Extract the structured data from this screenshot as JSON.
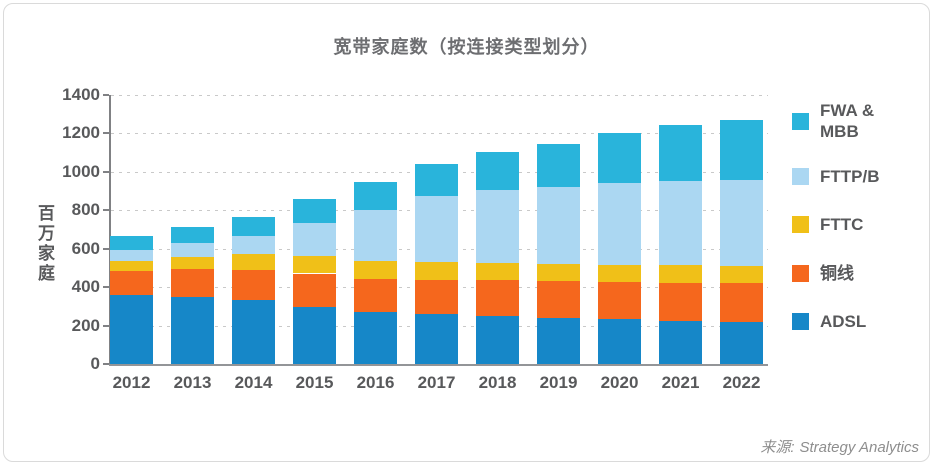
{
  "title": "宽带家庭数（按连接类型划分）",
  "source": {
    "label": "来源:",
    "value": "Strategy Analytics"
  },
  "chart_data": {
    "type": "bar",
    "stacked": true,
    "title": "宽带家庭数（按连接类型划分）",
    "xlabel": "",
    "ylabel": "百万家庭",
    "ylim": [
      0,
      1400
    ],
    "ytick_interval": 200,
    "grid": "horizontal-dashed",
    "legend_position": "right",
    "categories": [
      "2012",
      "2013",
      "2014",
      "2015",
      "2016",
      "2017",
      "2018",
      "2019",
      "2020",
      "2021",
      "2022"
    ],
    "series": [
      {
        "id": "adsl",
        "name": "ADSL",
        "legend_lines": [
          "ADSL"
        ],
        "color": "#1687C8",
        "values": [
          360,
          350,
          335,
          295,
          270,
          258,
          250,
          240,
          232,
          224,
          217
        ]
      },
      {
        "id": "copper-line",
        "name": "铜线",
        "legend_lines": [
          "铜线"
        ],
        "color": "#F5671D",
        "values": [
          122,
          146,
          155,
          176,
          174,
          178,
          185,
          192,
          196,
          198,
          202
        ]
      },
      {
        "id": "fttc",
        "name": "FTTC",
        "legend_lines": [
          "FTTC"
        ],
        "color": "#F0C018",
        "values": [
          56,
          59,
          80,
          89,
          92,
          96,
          91,
          88,
          88,
          91,
          89
        ]
      },
      {
        "id": "fttp-b",
        "name": "FTTP/B",
        "legend_lines": [
          "FTTP/B"
        ],
        "color": "#ABD7F2",
        "values": [
          55,
          75,
          97,
          174,
          264,
          340,
          380,
          402,
          425,
          440,
          449
        ]
      },
      {
        "id": "fwa-mbb",
        "name": "FWA & MBB",
        "legend_lines": [
          "FWA &",
          "MBB"
        ],
        "color": "#29B4DB",
        "values": [
          73,
          83,
          99,
          123,
          149,
          170,
          195,
          225,
          260,
          292,
          313
        ]
      }
    ]
  }
}
